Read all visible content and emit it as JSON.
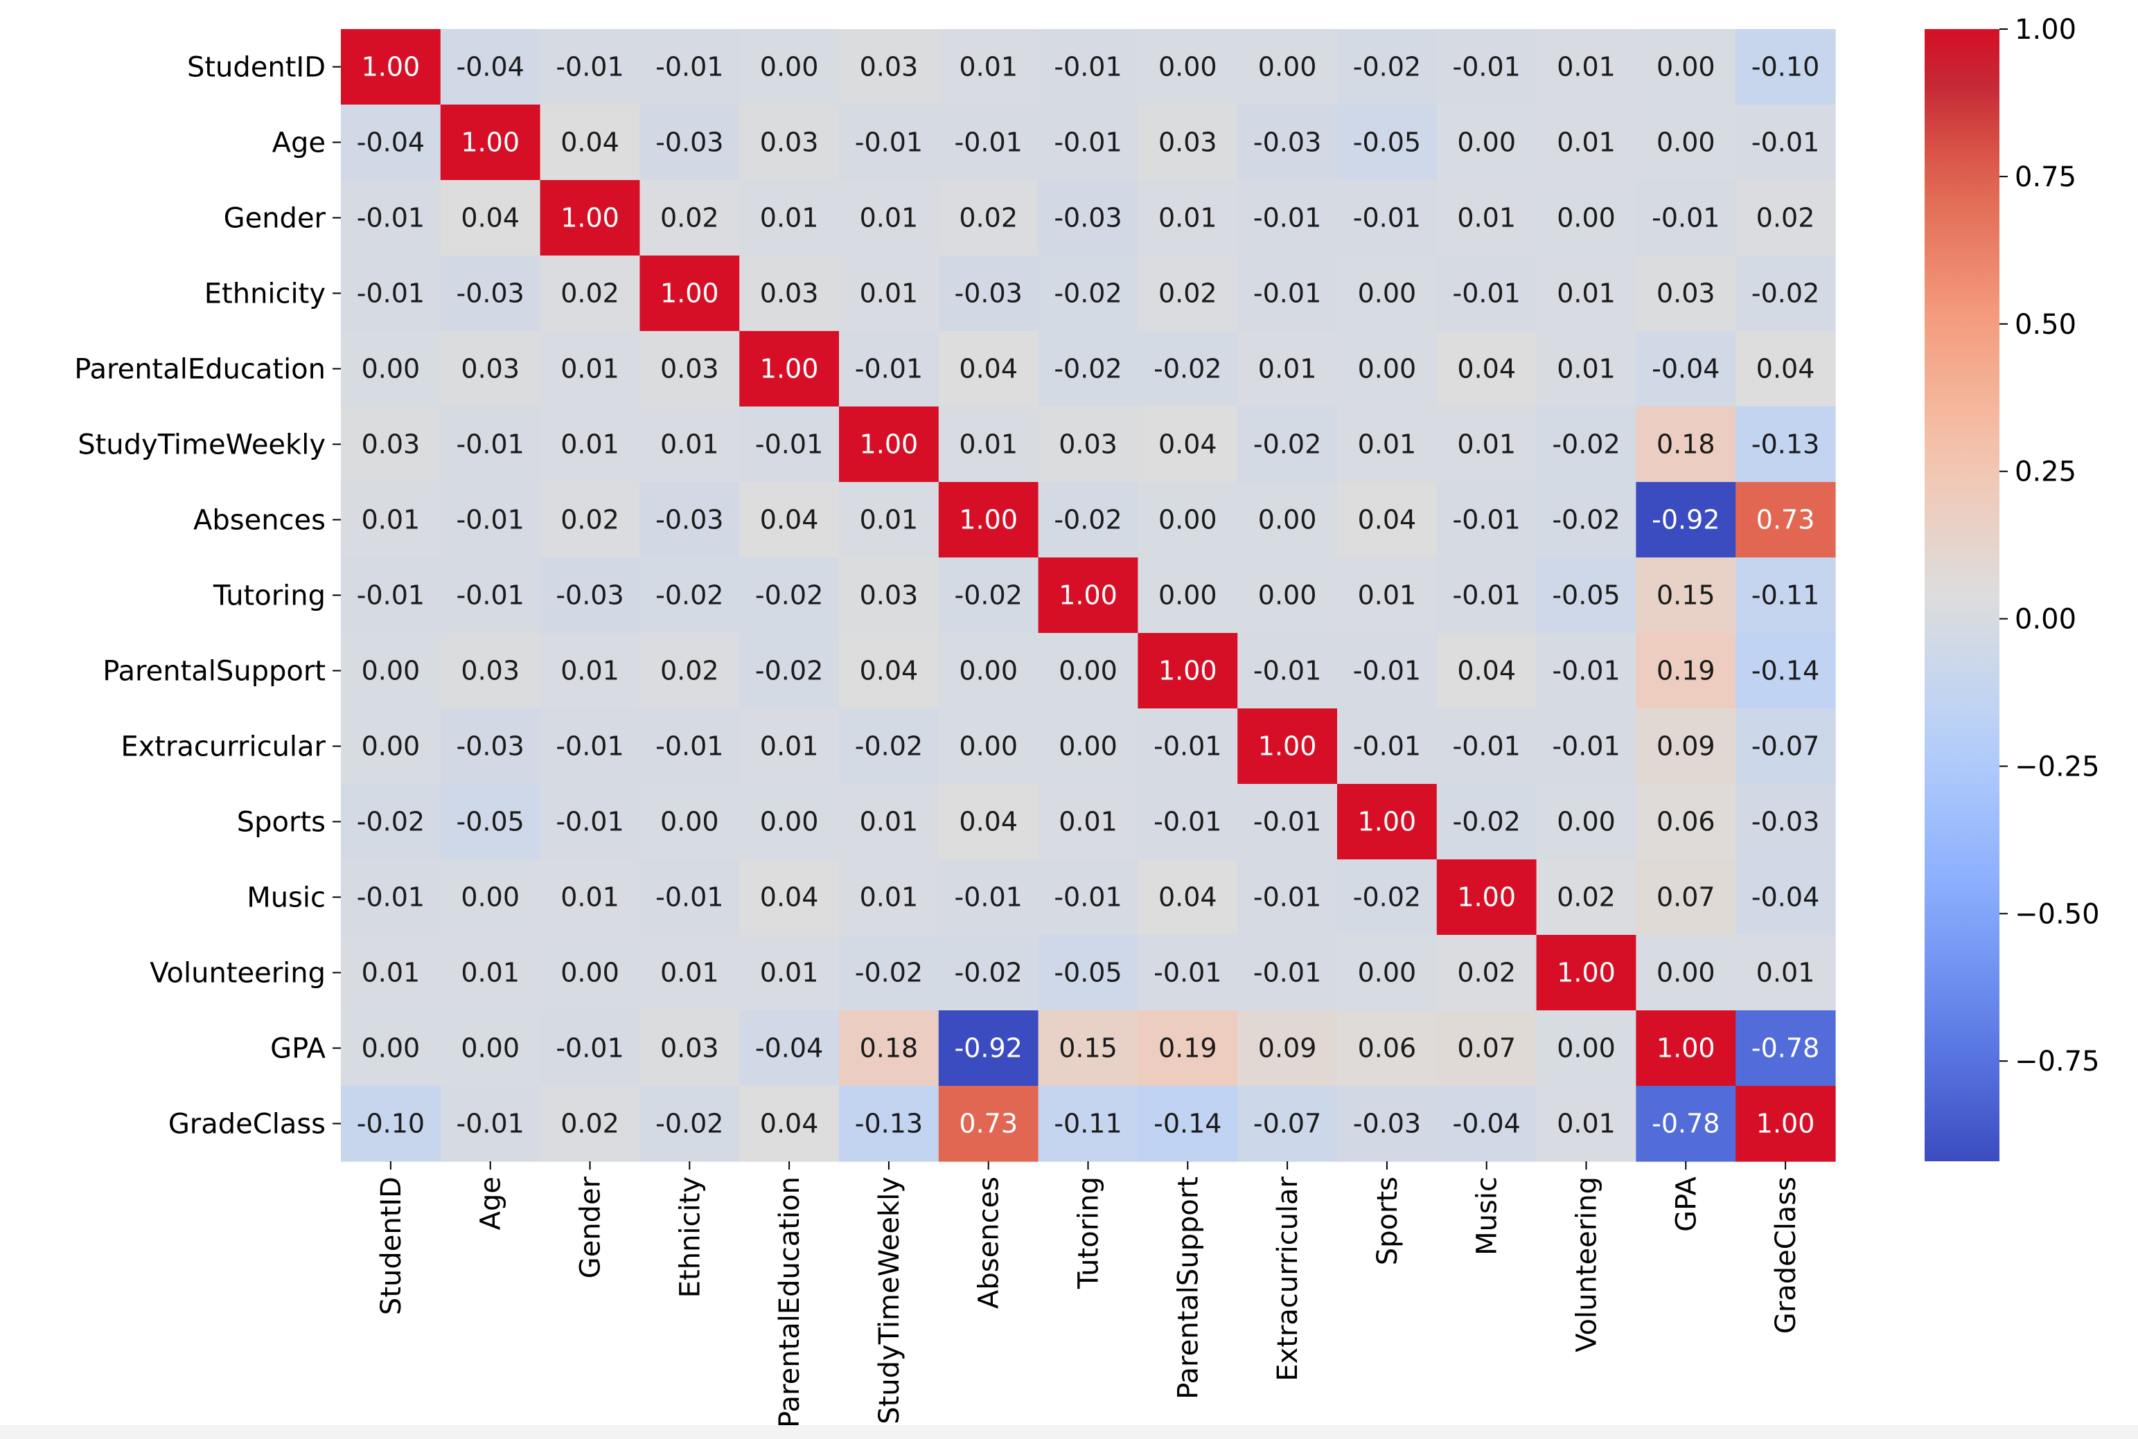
{
  "chart_data": {
    "type": "heatmap",
    "title": "",
    "xlabel": "",
    "ylabel": "",
    "labels": [
      "StudentID",
      "Age",
      "Gender",
      "Ethnicity",
      "ParentalEducation",
      "StudyTimeWeekly",
      "Absences",
      "Tutoring",
      "ParentalSupport",
      "Extracurricular",
      "Sports",
      "Music",
      "Volunteering",
      "GPA",
      "GradeClass"
    ],
    "matrix": [
      [
        1.0,
        -0.04,
        -0.01,
        -0.01,
        -0.0,
        0.03,
        0.01,
        -0.01,
        0.0,
        -0.0,
        -0.02,
        -0.01,
        0.01,
        -0.0,
        -0.1
      ],
      [
        -0.04,
        1.0,
        0.04,
        -0.03,
        0.03,
        -0.01,
        -0.01,
        -0.01,
        0.03,
        -0.03,
        -0.05,
        -0.0,
        0.01,
        0.0,
        -0.01
      ],
      [
        -0.01,
        0.04,
        1.0,
        0.02,
        0.01,
        0.01,
        0.02,
        -0.03,
        0.01,
        -0.01,
        -0.01,
        0.01,
        -0.0,
        -0.01,
        0.02
      ],
      [
        -0.01,
        -0.03,
        0.02,
        1.0,
        0.03,
        0.01,
        -0.03,
        -0.02,
        0.02,
        -0.01,
        -0.0,
        -0.01,
        0.01,
        0.03,
        -0.02
      ],
      [
        -0.0,
        0.03,
        0.01,
        0.03,
        1.0,
        -0.01,
        0.04,
        -0.02,
        -0.02,
        0.01,
        0.0,
        0.04,
        0.01,
        -0.04,
        0.04
      ],
      [
        0.03,
        -0.01,
        0.01,
        0.01,
        -0.01,
        1.0,
        0.01,
        0.03,
        0.04,
        -0.02,
        0.01,
        0.01,
        -0.02,
        0.18,
        -0.13
      ],
      [
        0.01,
        -0.01,
        0.02,
        -0.03,
        0.04,
        0.01,
        1.0,
        -0.02,
        0.0,
        0.0,
        0.04,
        -0.01,
        -0.02,
        -0.92,
        0.73
      ],
      [
        -0.01,
        -0.01,
        -0.03,
        -0.02,
        -0.02,
        0.03,
        -0.02,
        1.0,
        -0.0,
        0.0,
        0.01,
        -0.01,
        -0.05,
        0.15,
        -0.11
      ],
      [
        0.0,
        0.03,
        0.01,
        0.02,
        -0.02,
        0.04,
        0.0,
        -0.0,
        1.0,
        -0.01,
        -0.01,
        0.04,
        -0.01,
        0.19,
        -0.14
      ],
      [
        -0.0,
        -0.03,
        -0.01,
        -0.01,
        0.01,
        -0.02,
        0.0,
        0.0,
        -0.01,
        1.0,
        -0.01,
        -0.01,
        -0.01,
        0.09,
        -0.07
      ],
      [
        -0.02,
        -0.05,
        -0.01,
        -0.0,
        0.0,
        0.01,
        0.04,
        0.01,
        -0.01,
        -0.01,
        1.0,
        -0.02,
        -0.0,
        0.06,
        -0.03
      ],
      [
        -0.01,
        -0.0,
        0.01,
        -0.01,
        0.04,
        0.01,
        -0.01,
        -0.01,
        0.04,
        -0.01,
        -0.02,
        1.0,
        0.02,
        0.07,
        -0.04
      ],
      [
        0.01,
        0.01,
        -0.0,
        0.01,
        0.01,
        -0.02,
        -0.02,
        -0.05,
        -0.01,
        -0.01,
        -0.0,
        0.02,
        1.0,
        0.0,
        0.01
      ],
      [
        -0.0,
        0.0,
        -0.01,
        0.03,
        -0.04,
        0.18,
        -0.92,
        0.15,
        0.19,
        0.09,
        0.06,
        0.07,
        0.0,
        1.0,
        -0.78
      ],
      [
        -0.1,
        -0.01,
        0.02,
        -0.02,
        0.04,
        -0.13,
        0.73,
        -0.11,
        -0.14,
        -0.07,
        -0.03,
        -0.04,
        0.01,
        -0.78,
        1.0
      ]
    ],
    "vmin": -0.92,
    "vmax": 1.0,
    "colormap": "coolwarm",
    "annotation_format": "0.00",
    "colorbar": {
      "ticks": [
        1.0,
        0.75,
        0.5,
        0.25,
        0.0,
        -0.25,
        -0.5,
        -0.75
      ],
      "tick_labels": [
        "1.00",
        "0.75",
        "0.50",
        "0.25",
        "0.00",
        "−0.25",
        "−0.50",
        "−0.75"
      ]
    }
  }
}
